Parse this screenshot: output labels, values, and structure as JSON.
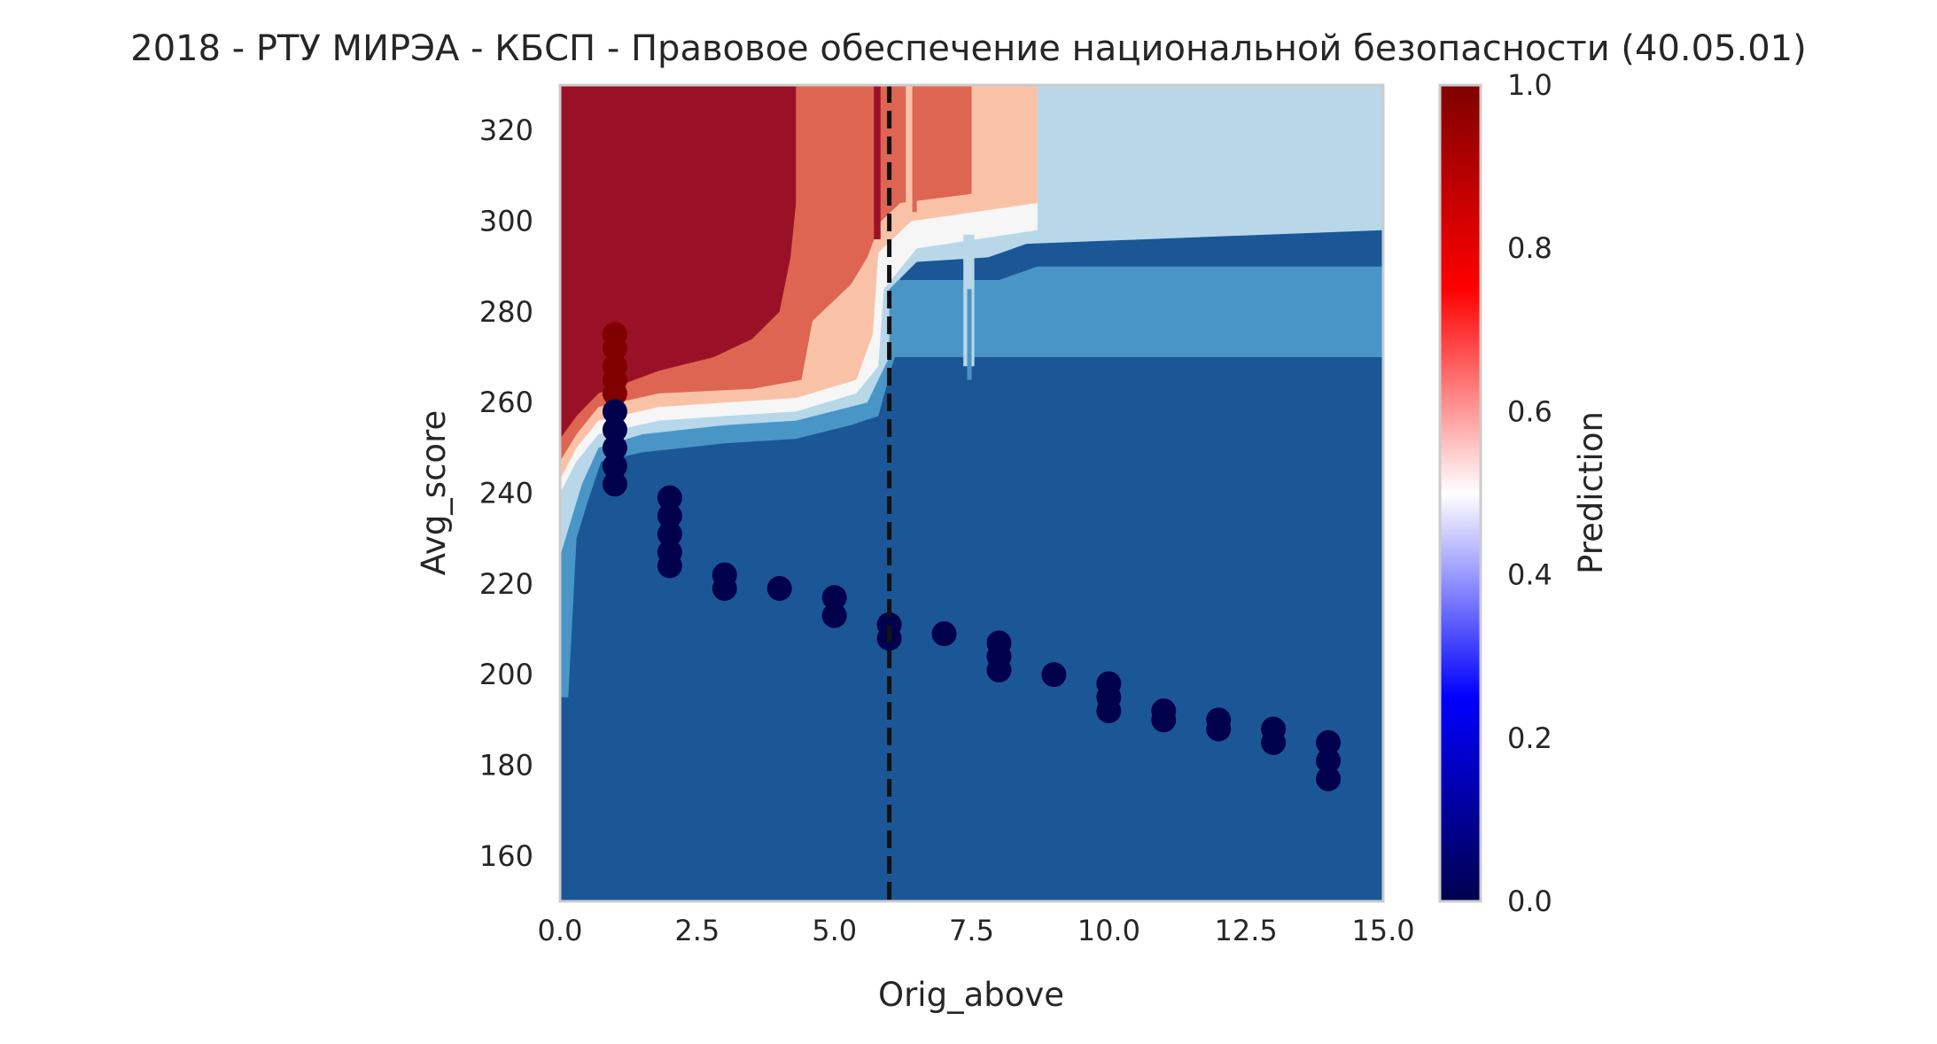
{
  "chart_data": {
    "type": "heatmap",
    "title": "2018 - РТУ МИРЭА - КБСП - Правовое обеспечение национальной безопасности (40.05.01)",
    "xlabel": "Orig_above",
    "ylabel": "Avg_score",
    "xlim": [
      0,
      15
    ],
    "ylim": [
      150,
      330
    ],
    "x_ticks": [
      "0.0",
      "2.5",
      "5.0",
      "7.5",
      "10.0",
      "12.5",
      "15.0"
    ],
    "x_tick_values": [
      0,
      2.5,
      5,
      7.5,
      10,
      12.5,
      15
    ],
    "y_ticks": [
      "160",
      "180",
      "200",
      "220",
      "240",
      "260",
      "280",
      "300",
      "320"
    ],
    "y_tick_values": [
      160,
      180,
      200,
      220,
      240,
      260,
      280,
      300,
      320
    ],
    "grid": false,
    "colormap": "seismic",
    "colorbar": {
      "label": "Prediction",
      "range": [
        0,
        1
      ],
      "ticks": [
        "0.0",
        "0.2",
        "0.4",
        "0.6",
        "0.8",
        "1.0"
      ],
      "tick_values": [
        0,
        0.2,
        0.4,
        0.6,
        0.8,
        1.0
      ],
      "stops": [
        "#00004d",
        "#0000ff",
        "#ffffff",
        "#ff0000",
        "#800000"
      ]
    },
    "contour_levels": [
      {
        "level": "0.0-0.1",
        "color": "#1b5796"
      },
      {
        "level": "0.1-0.2",
        "color": "#4996c6"
      },
      {
        "level": "0.2-0.4",
        "color": "#b8d7e9"
      },
      {
        "level": "0.4-0.5",
        "color": "#f6f6f6"
      },
      {
        "level": "0.5-0.6",
        "color": "#f9c2a7"
      },
      {
        "level": "0.6-0.8",
        "color": "#de6552"
      },
      {
        "level": "0.8-1.0",
        "color": "#9a1127"
      }
    ],
    "threshold_line": {
      "x": 6,
      "style": "dashed",
      "color": "#111111"
    },
    "scatter_points": [
      {
        "x": 1,
        "y": 275,
        "p": 1
      },
      {
        "x": 1,
        "y": 272,
        "p": 1
      },
      {
        "x": 1,
        "y": 268,
        "p": 1
      },
      {
        "x": 1,
        "y": 265,
        "p": 1
      },
      {
        "x": 1,
        "y": 262,
        "p": 1
      },
      {
        "x": 1,
        "y": 258,
        "p": 0
      },
      {
        "x": 1,
        "y": 254,
        "p": 0
      },
      {
        "x": 1,
        "y": 250,
        "p": 0
      },
      {
        "x": 1,
        "y": 246,
        "p": 0
      },
      {
        "x": 1,
        "y": 242,
        "p": 0
      },
      {
        "x": 2,
        "y": 239,
        "p": 0
      },
      {
        "x": 2,
        "y": 235,
        "p": 0
      },
      {
        "x": 2,
        "y": 231,
        "p": 0
      },
      {
        "x": 2,
        "y": 227,
        "p": 0
      },
      {
        "x": 2,
        "y": 224,
        "p": 0
      },
      {
        "x": 3,
        "y": 222,
        "p": 0
      },
      {
        "x": 3,
        "y": 219,
        "p": 0
      },
      {
        "x": 4,
        "y": 219,
        "p": 0
      },
      {
        "x": 5,
        "y": 217,
        "p": 0
      },
      {
        "x": 5,
        "y": 213,
        "p": 0
      },
      {
        "x": 6,
        "y": 211,
        "p": 0
      },
      {
        "x": 6,
        "y": 208,
        "p": 0
      },
      {
        "x": 7,
        "y": 209,
        "p": 0
      },
      {
        "x": 8,
        "y": 207,
        "p": 0
      },
      {
        "x": 8,
        "y": 204,
        "p": 0
      },
      {
        "x": 8,
        "y": 201,
        "p": 0
      },
      {
        "x": 9,
        "y": 200,
        "p": 0
      },
      {
        "x": 10,
        "y": 198,
        "p": 0
      },
      {
        "x": 10,
        "y": 195,
        "p": 0
      },
      {
        "x": 10,
        "y": 192,
        "p": 0
      },
      {
        "x": 11,
        "y": 192,
        "p": 0
      },
      {
        "x": 11,
        "y": 190,
        "p": 0
      },
      {
        "x": 12,
        "y": 190,
        "p": 0
      },
      {
        "x": 12,
        "y": 188,
        "p": 0
      },
      {
        "x": 13,
        "y": 188,
        "p": 0
      },
      {
        "x": 13,
        "y": 185,
        "p": 0
      },
      {
        "x": 14,
        "y": 185,
        "p": 0
      },
      {
        "x": 14,
        "y": 181,
        "p": 0
      },
      {
        "x": 14,
        "y": 177,
        "p": 0
      }
    ]
  }
}
